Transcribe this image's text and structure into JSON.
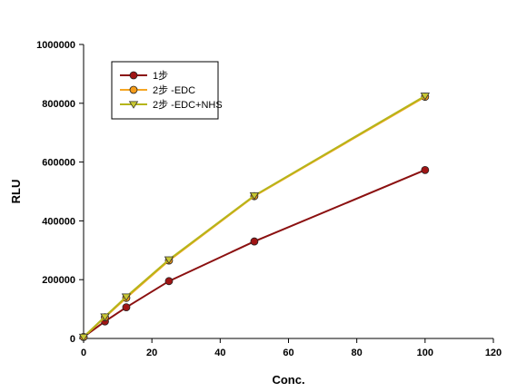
{
  "chart_data": {
    "type": "line",
    "title": "",
    "xlabel": "Conc.",
    "ylabel": "RLU",
    "xlim": [
      0,
      120
    ],
    "ylim": [
      0,
      1000000
    ],
    "xticks": [
      0,
      20,
      40,
      60,
      80,
      100,
      120
    ],
    "yticks": [
      0,
      200000,
      400000,
      600000,
      800000,
      1000000
    ],
    "xtick_labels": [
      "0",
      "20",
      "40",
      "60",
      "80",
      "100",
      "120"
    ],
    "ytick_labels": [
      "0",
      "200000",
      "400000",
      "600000",
      "800000",
      "1000000"
    ],
    "grid": false,
    "legend_position": "top-left",
    "series": [
      {
        "name": "1步",
        "color": "#8b1010",
        "marker_fill": "#a01515",
        "marker": "circle",
        "x": [
          0,
          6.25,
          12.5,
          25,
          50,
          100
        ],
        "y": [
          5000,
          58000,
          106000,
          195000,
          330000,
          573000
        ]
      },
      {
        "name": "2步 -EDC",
        "color": "#f5a623",
        "marker_fill": "#f59c1a",
        "marker": "circle",
        "x": [
          0,
          6.25,
          12.5,
          25,
          50,
          100
        ],
        "y": [
          5000,
          72000,
          138000,
          265000,
          484000,
          822000
        ]
      },
      {
        "name": "2步 -EDC+NHS",
        "color": "#b5b51a",
        "marker_fill": "#c8c832",
        "marker": "triangle-down",
        "x": [
          0,
          6.25,
          12.5,
          25,
          50,
          100
        ],
        "y": [
          5000,
          74000,
          142000,
          268000,
          486000,
          825000
        ]
      }
    ]
  }
}
